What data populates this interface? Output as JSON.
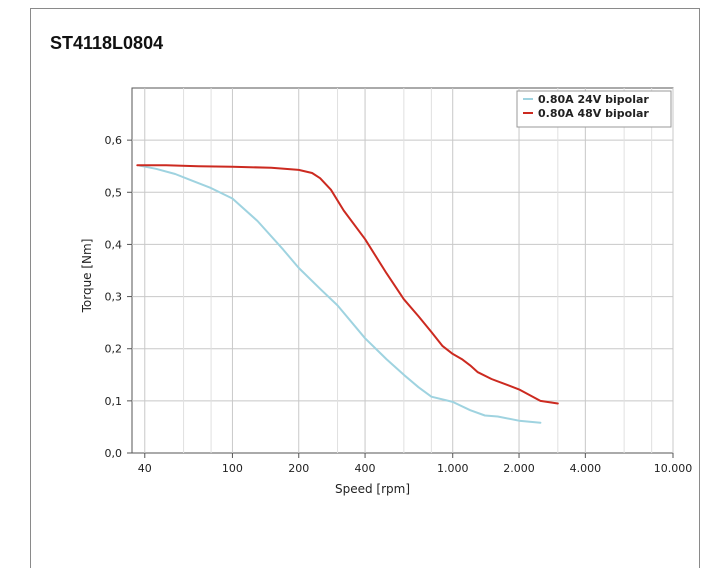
{
  "title": "ST4118L0804",
  "chart_data": {
    "type": "line",
    "xscale": "log",
    "xlim": [
      35,
      10000
    ],
    "ylim": [
      0,
      0.7
    ],
    "xticks": [
      40,
      100,
      200,
      400,
      1000,
      2000,
      4000,
      10000
    ],
    "xtick_labels": [
      "40",
      "100",
      "200",
      "400",
      "1.000",
      "2.000",
      "4.000",
      "10.000"
    ],
    "yticks": [
      0,
      0.1,
      0.2,
      0.3,
      0.4,
      0.5,
      0.6
    ],
    "ytick_labels": [
      "0,0",
      "0,1",
      "0,2",
      "0,3",
      "0,4",
      "0,5",
      "0,6"
    ],
    "xlabel": "Speed [rpm]",
    "ylabel": "Torque [Nm]",
    "grid": true,
    "legend_position": "top-right",
    "series": [
      {
        "name": "0.80A 24V bipolar",
        "color": "#9fd3e0",
        "x": [
          38,
          45,
          55,
          65,
          80,
          100,
          130,
          170,
          200,
          250,
          300,
          400,
          500,
          600,
          700,
          800,
          1000,
          1200,
          1400,
          1600,
          2000,
          2500
        ],
        "y": [
          0.551,
          0.545,
          0.535,
          0.523,
          0.508,
          0.488,
          0.445,
          0.39,
          0.355,
          0.315,
          0.283,
          0.22,
          0.18,
          0.15,
          0.126,
          0.108,
          0.098,
          0.082,
          0.072,
          0.07,
          0.062,
          0.058
        ]
      },
      {
        "name": "0.80A 48V bipolar",
        "color": "#cc2a20",
        "x": [
          37,
          50,
          70,
          100,
          150,
          200,
          230,
          250,
          280,
          320,
          400,
          500,
          600,
          700,
          800,
          900,
          1000,
          1100,
          1200,
          1300,
          1500,
          2000,
          2500,
          3000
        ],
        "y": [
          0.552,
          0.552,
          0.55,
          0.549,
          0.547,
          0.543,
          0.537,
          0.527,
          0.505,
          0.465,
          0.41,
          0.345,
          0.295,
          0.262,
          0.232,
          0.205,
          0.19,
          0.18,
          0.168,
          0.155,
          0.142,
          0.122,
          0.1,
          0.095
        ]
      }
    ]
  }
}
